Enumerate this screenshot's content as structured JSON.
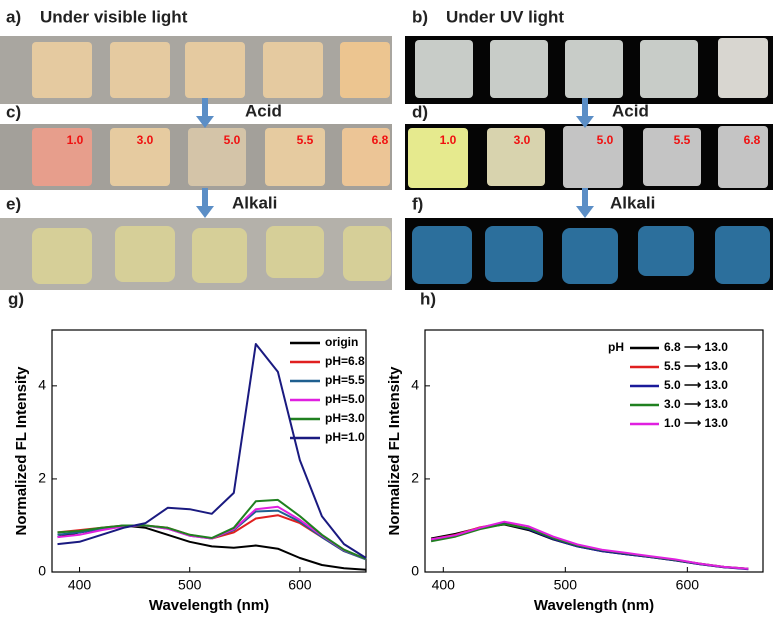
{
  "panels": [
    {
      "label": "a)",
      "title": "Under visible light"
    },
    {
      "label": "b)",
      "title": "Under UV light"
    },
    {
      "label": "c)",
      "title": "Acid",
      "ph": [
        "1.0",
        "3.0",
        "5.0",
        "5.5",
        "6.8"
      ]
    },
    {
      "label": "d)",
      "title": "Acid",
      "ph": [
        "1.0",
        "3.0",
        "5.0",
        "5.5",
        "6.8"
      ]
    },
    {
      "label": "e)",
      "title": "Alkali"
    },
    {
      "label": "f)",
      "title": "Alkali"
    }
  ],
  "chart_data": [
    {
      "type": "line",
      "panel_label": "g)",
      "xlabel": "Wavelength (nm)",
      "ylabel": "Normalized FL Intensity",
      "x": [
        380,
        400,
        420,
        440,
        460,
        480,
        500,
        520,
        540,
        560,
        580,
        600,
        620,
        640,
        660
      ],
      "xlim": [
        375,
        660
      ],
      "xticks": [
        400,
        500,
        600
      ],
      "ylim": [
        0,
        5.2
      ],
      "yticks": [
        0,
        2,
        4
      ],
      "legend": "upper right",
      "series": [
        {
          "name": "origin",
          "color": "#000000",
          "values": [
            0.75,
            0.85,
            0.92,
            1.0,
            0.95,
            0.8,
            0.65,
            0.55,
            0.52,
            0.57,
            0.5,
            0.3,
            0.15,
            0.08,
            0.05
          ]
        },
        {
          "name": "pH=6.8",
          "color": "#e02020",
          "values": [
            0.85,
            0.9,
            0.95,
            1.0,
            1.0,
            0.95,
            0.8,
            0.72,
            0.85,
            1.15,
            1.22,
            1.05,
            0.75,
            0.45,
            0.28
          ]
        },
        {
          "name": "pH=5.5",
          "color": "#1f5f8f",
          "values": [
            0.8,
            0.85,
            0.93,
            1.0,
            1.0,
            0.93,
            0.78,
            0.72,
            0.9,
            1.3,
            1.32,
            1.08,
            0.75,
            0.45,
            0.27
          ]
        },
        {
          "name": "pH=5.0",
          "color": "#e020e0",
          "values": [
            0.75,
            0.8,
            0.9,
            0.98,
            1.0,
            0.93,
            0.78,
            0.72,
            0.92,
            1.35,
            1.4,
            1.12,
            0.78,
            0.47,
            0.28
          ]
        },
        {
          "name": "pH=3.0",
          "color": "#208020",
          "values": [
            0.85,
            0.88,
            0.95,
            1.0,
            1.0,
            0.95,
            0.8,
            0.73,
            0.95,
            1.52,
            1.55,
            1.2,
            0.8,
            0.48,
            0.28
          ]
        },
        {
          "name": "pH=1.0",
          "color": "#1a1a80",
          "values": [
            0.6,
            0.65,
            0.8,
            0.95,
            1.05,
            1.38,
            1.35,
            1.25,
            1.7,
            4.9,
            4.3,
            2.4,
            1.2,
            0.6,
            0.3
          ]
        }
      ]
    },
    {
      "type": "line",
      "panel_label": "h)",
      "xlabel": "Wavelength (nm)",
      "ylabel": "Normalized FL Intensity",
      "x": [
        390,
        410,
        430,
        450,
        470,
        490,
        510,
        530,
        550,
        570,
        590,
        610,
        630,
        650
      ],
      "xlim": [
        385,
        662
      ],
      "xticks": [
        400,
        500,
        600
      ],
      "ylim": [
        0,
        5.2
      ],
      "yticks": [
        0,
        2,
        4
      ],
      "legend": "upper right",
      "legend_title": "pH",
      "series": [
        {
          "name": "6.8 ⟶ 13.0",
          "color": "#000000",
          "values": [
            0.72,
            0.82,
            0.95,
            1.02,
            0.9,
            0.7,
            0.55,
            0.45,
            0.38,
            0.32,
            0.25,
            0.17,
            0.1,
            0.07
          ]
        },
        {
          "name": "5.5 ⟶ 13.0",
          "color": "#e02020",
          "values": [
            0.7,
            0.8,
            0.96,
            1.05,
            0.93,
            0.72,
            0.56,
            0.46,
            0.39,
            0.33,
            0.26,
            0.18,
            0.11,
            0.07
          ]
        },
        {
          "name": "5.0 ⟶ 13.0",
          "color": "#1a1a9a",
          "values": [
            0.68,
            0.78,
            0.94,
            1.04,
            0.92,
            0.71,
            0.55,
            0.45,
            0.38,
            0.32,
            0.25,
            0.17,
            0.1,
            0.06
          ]
        },
        {
          "name": "3.0 ⟶ 13.0",
          "color": "#208020",
          "values": [
            0.66,
            0.76,
            0.92,
            1.03,
            0.94,
            0.73,
            0.57,
            0.47,
            0.4,
            0.33,
            0.26,
            0.18,
            0.11,
            0.07
          ]
        },
        {
          "name": "1.0 ⟶ 13.0",
          "color": "#e020e0",
          "values": [
            0.7,
            0.79,
            0.95,
            1.08,
            0.98,
            0.76,
            0.59,
            0.48,
            0.41,
            0.34,
            0.27,
            0.18,
            0.11,
            0.07
          ]
        }
      ]
    }
  ]
}
